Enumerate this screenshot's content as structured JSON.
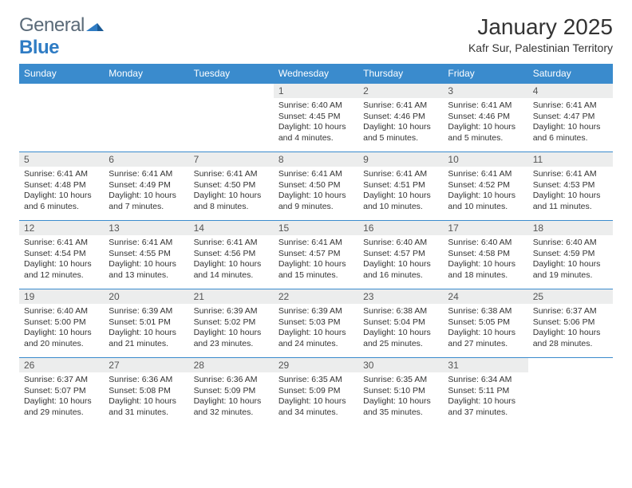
{
  "logo": {
    "general": "General",
    "blue": "Blue"
  },
  "title": "January 2025",
  "location": "Kafr Sur, Palestinian Territory",
  "colors": {
    "header_bg": "#3a8bcd",
    "header_text": "#ffffff",
    "daynum_bg": "#eceded",
    "row_border": "#3a8bcd",
    "logo_gray": "#5a6a78",
    "logo_blue": "#2f7cc4"
  },
  "typography": {
    "title_fontsize": 28,
    "location_fontsize": 14,
    "header_fontsize": 12,
    "daynum_fontsize": 12,
    "body_fontsize": 10.5
  },
  "weekdays": [
    "Sunday",
    "Monday",
    "Tuesday",
    "Wednesday",
    "Thursday",
    "Friday",
    "Saturday"
  ],
  "weeks": [
    [
      {
        "n": "",
        "sunrise": "",
        "sunset": "",
        "daylight": ""
      },
      {
        "n": "",
        "sunrise": "",
        "sunset": "",
        "daylight": ""
      },
      {
        "n": "",
        "sunrise": "",
        "sunset": "",
        "daylight": ""
      },
      {
        "n": "1",
        "sunrise": "Sunrise: 6:40 AM",
        "sunset": "Sunset: 4:45 PM",
        "daylight": "Daylight: 10 hours and 4 minutes."
      },
      {
        "n": "2",
        "sunrise": "Sunrise: 6:41 AM",
        "sunset": "Sunset: 4:46 PM",
        "daylight": "Daylight: 10 hours and 5 minutes."
      },
      {
        "n": "3",
        "sunrise": "Sunrise: 6:41 AM",
        "sunset": "Sunset: 4:46 PM",
        "daylight": "Daylight: 10 hours and 5 minutes."
      },
      {
        "n": "4",
        "sunrise": "Sunrise: 6:41 AM",
        "sunset": "Sunset: 4:47 PM",
        "daylight": "Daylight: 10 hours and 6 minutes."
      }
    ],
    [
      {
        "n": "5",
        "sunrise": "Sunrise: 6:41 AM",
        "sunset": "Sunset: 4:48 PM",
        "daylight": "Daylight: 10 hours and 6 minutes."
      },
      {
        "n": "6",
        "sunrise": "Sunrise: 6:41 AM",
        "sunset": "Sunset: 4:49 PM",
        "daylight": "Daylight: 10 hours and 7 minutes."
      },
      {
        "n": "7",
        "sunrise": "Sunrise: 6:41 AM",
        "sunset": "Sunset: 4:50 PM",
        "daylight": "Daylight: 10 hours and 8 minutes."
      },
      {
        "n": "8",
        "sunrise": "Sunrise: 6:41 AM",
        "sunset": "Sunset: 4:50 PM",
        "daylight": "Daylight: 10 hours and 9 minutes."
      },
      {
        "n": "9",
        "sunrise": "Sunrise: 6:41 AM",
        "sunset": "Sunset: 4:51 PM",
        "daylight": "Daylight: 10 hours and 10 minutes."
      },
      {
        "n": "10",
        "sunrise": "Sunrise: 6:41 AM",
        "sunset": "Sunset: 4:52 PM",
        "daylight": "Daylight: 10 hours and 10 minutes."
      },
      {
        "n": "11",
        "sunrise": "Sunrise: 6:41 AM",
        "sunset": "Sunset: 4:53 PM",
        "daylight": "Daylight: 10 hours and 11 minutes."
      }
    ],
    [
      {
        "n": "12",
        "sunrise": "Sunrise: 6:41 AM",
        "sunset": "Sunset: 4:54 PM",
        "daylight": "Daylight: 10 hours and 12 minutes."
      },
      {
        "n": "13",
        "sunrise": "Sunrise: 6:41 AM",
        "sunset": "Sunset: 4:55 PM",
        "daylight": "Daylight: 10 hours and 13 minutes."
      },
      {
        "n": "14",
        "sunrise": "Sunrise: 6:41 AM",
        "sunset": "Sunset: 4:56 PM",
        "daylight": "Daylight: 10 hours and 14 minutes."
      },
      {
        "n": "15",
        "sunrise": "Sunrise: 6:41 AM",
        "sunset": "Sunset: 4:57 PM",
        "daylight": "Daylight: 10 hours and 15 minutes."
      },
      {
        "n": "16",
        "sunrise": "Sunrise: 6:40 AM",
        "sunset": "Sunset: 4:57 PM",
        "daylight": "Daylight: 10 hours and 16 minutes."
      },
      {
        "n": "17",
        "sunrise": "Sunrise: 6:40 AM",
        "sunset": "Sunset: 4:58 PM",
        "daylight": "Daylight: 10 hours and 18 minutes."
      },
      {
        "n": "18",
        "sunrise": "Sunrise: 6:40 AM",
        "sunset": "Sunset: 4:59 PM",
        "daylight": "Daylight: 10 hours and 19 minutes."
      }
    ],
    [
      {
        "n": "19",
        "sunrise": "Sunrise: 6:40 AM",
        "sunset": "Sunset: 5:00 PM",
        "daylight": "Daylight: 10 hours and 20 minutes."
      },
      {
        "n": "20",
        "sunrise": "Sunrise: 6:39 AM",
        "sunset": "Sunset: 5:01 PM",
        "daylight": "Daylight: 10 hours and 21 minutes."
      },
      {
        "n": "21",
        "sunrise": "Sunrise: 6:39 AM",
        "sunset": "Sunset: 5:02 PM",
        "daylight": "Daylight: 10 hours and 23 minutes."
      },
      {
        "n": "22",
        "sunrise": "Sunrise: 6:39 AM",
        "sunset": "Sunset: 5:03 PM",
        "daylight": "Daylight: 10 hours and 24 minutes."
      },
      {
        "n": "23",
        "sunrise": "Sunrise: 6:38 AM",
        "sunset": "Sunset: 5:04 PM",
        "daylight": "Daylight: 10 hours and 25 minutes."
      },
      {
        "n": "24",
        "sunrise": "Sunrise: 6:38 AM",
        "sunset": "Sunset: 5:05 PM",
        "daylight": "Daylight: 10 hours and 27 minutes."
      },
      {
        "n": "25",
        "sunrise": "Sunrise: 6:37 AM",
        "sunset": "Sunset: 5:06 PM",
        "daylight": "Daylight: 10 hours and 28 minutes."
      }
    ],
    [
      {
        "n": "26",
        "sunrise": "Sunrise: 6:37 AM",
        "sunset": "Sunset: 5:07 PM",
        "daylight": "Daylight: 10 hours and 29 minutes."
      },
      {
        "n": "27",
        "sunrise": "Sunrise: 6:36 AM",
        "sunset": "Sunset: 5:08 PM",
        "daylight": "Daylight: 10 hours and 31 minutes."
      },
      {
        "n": "28",
        "sunrise": "Sunrise: 6:36 AM",
        "sunset": "Sunset: 5:09 PM",
        "daylight": "Daylight: 10 hours and 32 minutes."
      },
      {
        "n": "29",
        "sunrise": "Sunrise: 6:35 AM",
        "sunset": "Sunset: 5:09 PM",
        "daylight": "Daylight: 10 hours and 34 minutes."
      },
      {
        "n": "30",
        "sunrise": "Sunrise: 6:35 AM",
        "sunset": "Sunset: 5:10 PM",
        "daylight": "Daylight: 10 hours and 35 minutes."
      },
      {
        "n": "31",
        "sunrise": "Sunrise: 6:34 AM",
        "sunset": "Sunset: 5:11 PM",
        "daylight": "Daylight: 10 hours and 37 minutes."
      },
      {
        "n": "",
        "sunrise": "",
        "sunset": "",
        "daylight": ""
      }
    ]
  ]
}
